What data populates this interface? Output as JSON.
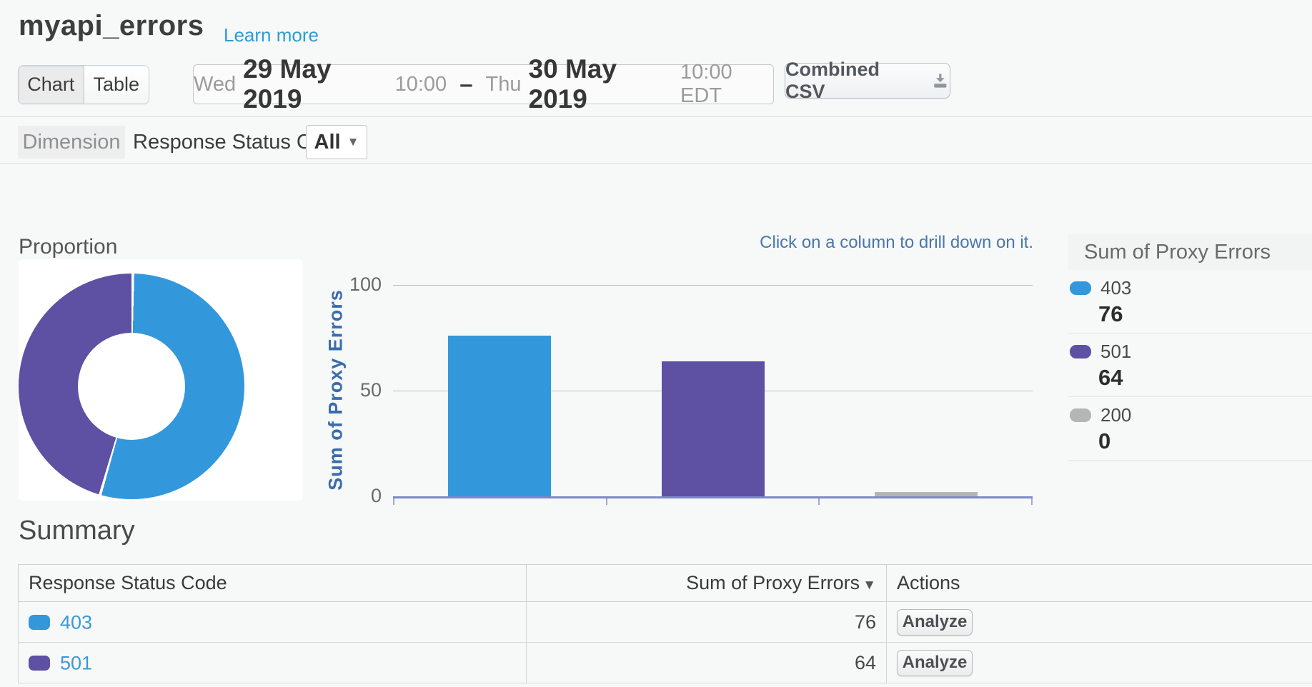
{
  "page": {
    "title": "myapi_errors",
    "learn_more": "Learn more"
  },
  "toolbar": {
    "view_toggle": [
      {
        "label": "Chart",
        "active": true
      },
      {
        "label": "Table",
        "active": false
      }
    ],
    "date_range": {
      "start_day": "Wed",
      "start_date": "29 May 2019",
      "start_time": "10:00",
      "separator": "–",
      "end_day": "Thu",
      "end_date": "30 May 2019",
      "end_time": "10:00 EDT"
    },
    "export_label": "Combined CSV",
    "download_icon": "download-tray-arrow"
  },
  "dimension_bar": {
    "badge": "Dimension",
    "dimension": "Response Status Code",
    "filter": "All",
    "caret_icon": "chevron-down"
  },
  "chart_section": {
    "proportion_title": "Proportion",
    "drill_hint": "Click on a column to drill down on it."
  },
  "chart_data": [
    {
      "type": "pie",
      "subtype": "donut",
      "title": "Proportion",
      "labels": [
        "403",
        "501",
        "200"
      ],
      "values": [
        76,
        64,
        0
      ],
      "colors": [
        "#3398db",
        "#5e50a2",
        "#b5b5b5"
      ]
    },
    {
      "type": "bar",
      "categories": [
        "403",
        "501",
        "200"
      ],
      "values": [
        76,
        64,
        0
      ],
      "colors": [
        "#3398db",
        "#5e50a2",
        "#b5b5b5"
      ],
      "ylabel": "Sum of Proxy Errors",
      "xlabel": "",
      "ylim": [
        0,
        100
      ],
      "yticks": [
        0,
        50,
        100
      ],
      "grid": true,
      "legend_position": "right",
      "annotation": "Click on a column to drill down on it."
    }
  ],
  "legend": {
    "title": "Sum of Proxy Errors",
    "items": [
      {
        "label": "403",
        "value": "76",
        "color": "#3398db"
      },
      {
        "label": "501",
        "value": "64",
        "color": "#5e50a2"
      },
      {
        "label": "200",
        "value": "0",
        "color": "#b5b5b5"
      }
    ]
  },
  "summary": {
    "title": "Summary",
    "columns": {
      "code": "Response Status Code",
      "sum": "Sum of Proxy Errors",
      "actions": "Actions"
    },
    "sort_icon": "sort-desc-triangle",
    "rows": [
      {
        "code": "403",
        "color": "#3398db",
        "sum": "76",
        "action": "Analyze"
      },
      {
        "code": "501",
        "color": "#5e50a2",
        "sum": "64",
        "action": "Analyze"
      }
    ]
  },
  "colors": {
    "accent_blue": "#3398db",
    "accent_purple": "#5e50a2",
    "neutral_gray": "#b5b5b5",
    "link": "#2a9dd9",
    "axis_line": "#7d87c9",
    "axis_label": "#3a6cac",
    "hint_text": "#4877ae"
  }
}
